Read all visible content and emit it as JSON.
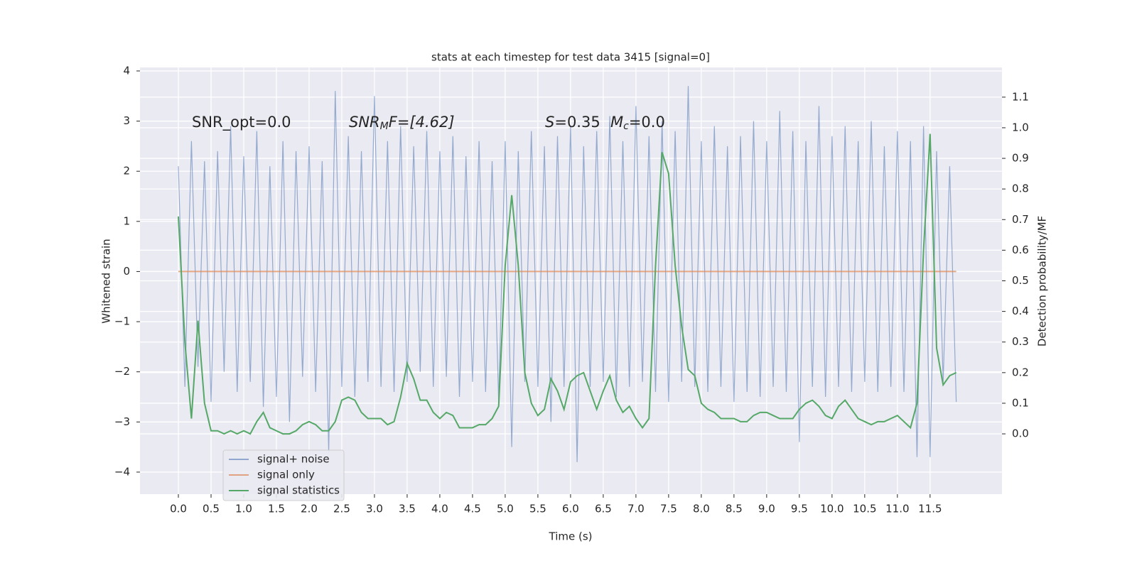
{
  "chart_data": {
    "type": "line",
    "title": "stats at each timestep for test data 3415 [signal=0]",
    "xlabel": "Time (s)",
    "ylabel": "Whitened strain",
    "y2label": "Detection probability/MF",
    "annotations": [
      {
        "parts": [
          "SNR_opt=0.0"
        ]
      },
      {
        "parts": [
          "SNR",
          "M",
          "F=[4.62]"
        ]
      },
      {
        "parts": [
          "S",
          "=0.35"
        ]
      },
      {
        "parts": [
          "M",
          "c",
          "=0.0"
        ]
      }
    ],
    "grid": true,
    "legend": "lower left",
    "xlim": [
      -0.587,
      12.6
    ],
    "ylim": [
      -4.44,
      4.07
    ],
    "y2lim": [
      -0.197,
      1.197
    ],
    "xticks": [
      {
        "value": 0,
        "label": "0.0"
      },
      0.5,
      {
        "value": 1,
        "label": "1.0"
      },
      1.5,
      {
        "value": 2,
        "label": "2.0"
      },
      2.5,
      {
        "value": 3,
        "label": "3.0"
      },
      3.5,
      {
        "value": 4,
        "label": "4.0"
      },
      4.5,
      {
        "value": 5,
        "label": "5.0"
      },
      5.5,
      {
        "value": 6,
        "label": "6.0"
      },
      6.5,
      {
        "value": 7,
        "label": "7.0"
      },
      7.5,
      {
        "value": 8,
        "label": "8.0"
      },
      8.5,
      {
        "value": 9,
        "label": "9.0"
      },
      9.5,
      {
        "value": 10,
        "label": "10.0"
      },
      10.5,
      {
        "value": 11,
        "label": "11.0"
      },
      11.5
    ],
    "yticks": [
      {
        "value": -4,
        "label": "−4"
      },
      {
        "value": -3,
        "label": "−3"
      },
      {
        "value": -2,
        "label": "−2"
      },
      {
        "value": -1,
        "label": "−1"
      },
      0,
      1,
      2,
      3,
      4
    ],
    "y2ticks": [
      {
        "value": 0,
        "label": "0.0"
      },
      0.1,
      0.2,
      0.3,
      0.4,
      0.5,
      0.6,
      0.7,
      0.8,
      0.9,
      {
        "value": 1,
        "label": "1.0"
      },
      1.1
    ],
    "x": [
      0,
      0.1,
      0.2,
      0.3,
      0.4,
      0.5,
      0.6,
      0.7,
      0.8,
      0.9,
      1,
      1.1,
      1.2,
      1.3,
      1.4,
      1.5,
      1.6,
      1.7,
      1.8,
      1.9,
      2,
      2.1,
      2.2,
      2.3,
      2.4,
      2.5,
      2.6,
      2.7,
      2.8,
      2.9,
      3,
      3.1,
      3.2,
      3.3,
      3.4,
      3.5,
      3.6,
      3.7,
      3.8,
      3.9,
      4,
      4.1,
      4.2,
      4.3,
      4.4,
      4.5,
      4.6,
      4.7,
      4.8,
      4.9,
      5,
      5.1,
      5.2,
      5.3,
      5.4,
      5.5,
      5.6,
      5.7,
      5.8,
      5.9,
      6,
      6.1,
      6.2,
      6.3,
      6.4,
      6.5,
      6.6,
      6.7,
      6.8,
      6.9,
      7,
      7.1,
      7.2,
      7.3,
      7.4,
      7.5,
      7.6,
      7.7,
      7.8,
      7.9,
      8,
      8.1,
      8.2,
      8.3,
      8.4,
      8.5,
      8.6,
      8.7,
      8.8,
      8.9,
      9,
      9.1,
      9.2,
      9.3,
      9.4,
      9.5,
      9.6,
      9.7,
      9.8,
      9.9,
      10,
      10.1,
      10.2,
      10.3,
      10.4,
      10.5,
      10.6,
      10.7,
      10.8,
      10.9,
      11,
      11.1,
      11.2,
      11.3,
      11.4,
      11.5,
      11.6,
      11.7,
      11.8,
      11.9
    ],
    "series": [
      {
        "name": "signal+ noise",
        "color": "#4c72b0",
        "values": [
          2.1,
          -2.3,
          2.6,
          -1.9,
          2.2,
          -2.6,
          2.4,
          -2.0,
          2.9,
          -2.4,
          2.3,
          -2.2,
          2.8,
          -2.7,
          2.1,
          -2.5,
          2.6,
          -3.0,
          2.4,
          -2.1,
          2.5,
          -2.4,
          2.2,
          -3.6,
          3.6,
          -2.3,
          2.7,
          -2.5,
          2.4,
          -2.2,
          3.5,
          -2.3,
          2.6,
          -2.4,
          2.9,
          -2.2,
          2.5,
          -2.0,
          2.8,
          -2.3,
          2.4,
          -2.1,
          2.7,
          -2.5,
          2.3,
          -2.2,
          2.6,
          -2.4,
          2.2,
          -2.6,
          2.6,
          -3.5,
          2.4,
          -2.2,
          2.8,
          -2.3,
          2.5,
          -3.0,
          2.7,
          -2.3,
          2.9,
          -3.8,
          2.5,
          -2.3,
          2.8,
          -2.2,
          3.1,
          -2.5,
          2.6,
          -2.3,
          3.3,
          -2.2,
          2.7,
          -2.4,
          3.0,
          -2.6,
          2.8,
          -2.2,
          3.7,
          -2.3,
          2.6,
          -2.4,
          2.9,
          -2.3,
          2.5,
          -2.6,
          2.7,
          -2.4,
          3.0,
          -2.5,
          2.6,
          -2.3,
          3.2,
          -2.4,
          2.8,
          -3.4,
          2.6,
          -2.3,
          3.3,
          -2.5,
          2.7,
          -2.3,
          2.9,
          -2.4,
          2.6,
          -2.2,
          3.0,
          -2.4,
          2.5,
          -2.3,
          2.8,
          -2.4,
          2.6,
          -3.7,
          2.9,
          -3.7,
          2.4,
          -2.2,
          2.1,
          -2.6
        ]
      },
      {
        "name": "signal only",
        "color": "#dd8452",
        "values": [
          0,
          0,
          0,
          0,
          0,
          0,
          0,
          0,
          0,
          0,
          0,
          0,
          0,
          0,
          0,
          0,
          0,
          0,
          0,
          0,
          0,
          0,
          0,
          0,
          0,
          0,
          0,
          0,
          0,
          0,
          0,
          0,
          0,
          0,
          0,
          0,
          0,
          0,
          0,
          0,
          0,
          0,
          0,
          0,
          0,
          0,
          0,
          0,
          0,
          0,
          0,
          0,
          0,
          0,
          0,
          0,
          0,
          0,
          0,
          0,
          0,
          0,
          0,
          0,
          0,
          0,
          0,
          0,
          0,
          0,
          0,
          0,
          0,
          0,
          0,
          0,
          0,
          0,
          0,
          0,
          0,
          0,
          0,
          0,
          0,
          0,
          0,
          0,
          0,
          0,
          0,
          0,
          0,
          0,
          0,
          0,
          0,
          0,
          0,
          0,
          0,
          0,
          0,
          0,
          0,
          0,
          0,
          0,
          0,
          0,
          0,
          0,
          0,
          0,
          0,
          0,
          0,
          0,
          0,
          0
        ]
      },
      {
        "name": "signal statistics",
        "color": "#55a868",
        "axis": "y2",
        "values": [
          0.71,
          0.3,
          0.05,
          0.37,
          0.1,
          0.01,
          0.01,
          0.0,
          0.01,
          0.0,
          0.01,
          0.0,
          0.04,
          0.07,
          0.02,
          0.01,
          0.0,
          0.0,
          0.01,
          0.03,
          0.04,
          0.03,
          0.01,
          0.01,
          0.04,
          0.11,
          0.12,
          0.11,
          0.07,
          0.05,
          0.05,
          0.05,
          0.03,
          0.04,
          0.12,
          0.23,
          0.18,
          0.11,
          0.11,
          0.07,
          0.05,
          0.07,
          0.06,
          0.02,
          0.02,
          0.02,
          0.03,
          0.03,
          0.05,
          0.09,
          0.55,
          0.78,
          0.55,
          0.2,
          0.1,
          0.06,
          0.08,
          0.18,
          0.14,
          0.08,
          0.17,
          0.19,
          0.2,
          0.14,
          0.08,
          0.14,
          0.19,
          0.11,
          0.07,
          0.09,
          0.05,
          0.02,
          0.05,
          0.55,
          0.92,
          0.85,
          0.55,
          0.35,
          0.21,
          0.19,
          0.1,
          0.08,
          0.07,
          0.05,
          0.05,
          0.05,
          0.04,
          0.04,
          0.06,
          0.07,
          0.07,
          0.06,
          0.05,
          0.05,
          0.05,
          0.08,
          0.1,
          0.11,
          0.09,
          0.06,
          0.05,
          0.09,
          0.11,
          0.08,
          0.05,
          0.04,
          0.03,
          0.04,
          0.04,
          0.05,
          0.06,
          0.04,
          0.02,
          0.1,
          0.6,
          0.98,
          0.28,
          0.16,
          0.19,
          0.2
        ]
      }
    ]
  }
}
